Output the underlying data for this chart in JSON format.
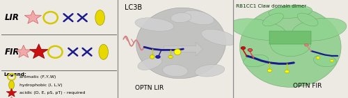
{
  "panel_bg_left": "#ede9e3",
  "panel_bg_mid": "#cccccc",
  "panel_bg_right": "#c8ccc4",
  "lir_label": "LIR",
  "fir_label": "FIR",
  "legend_title": "Legend:",
  "lc3b_label": "LC3B",
  "optn_lir_label": "OPTN LIR",
  "rb1cc1_label": "RB1CC1 Claw domain dimer",
  "optn_fir_label": "OPTN FIR",
  "label_fontsize": 6.5,
  "title_fontsize": 7,
  "row_label_fontsize": 8.5,
  "legend_fontsize": 4.5,
  "star_color_required": "#cc1010",
  "star_color_enhancing": "#f0a8a8",
  "star_edge_required": "#880000",
  "star_edge_enhancing": "#cc6060",
  "circle_color": "#d4c800",
  "ellipse_color": "#e8d800",
  "x_color": "#1a1a8c",
  "border_color": "#888888"
}
